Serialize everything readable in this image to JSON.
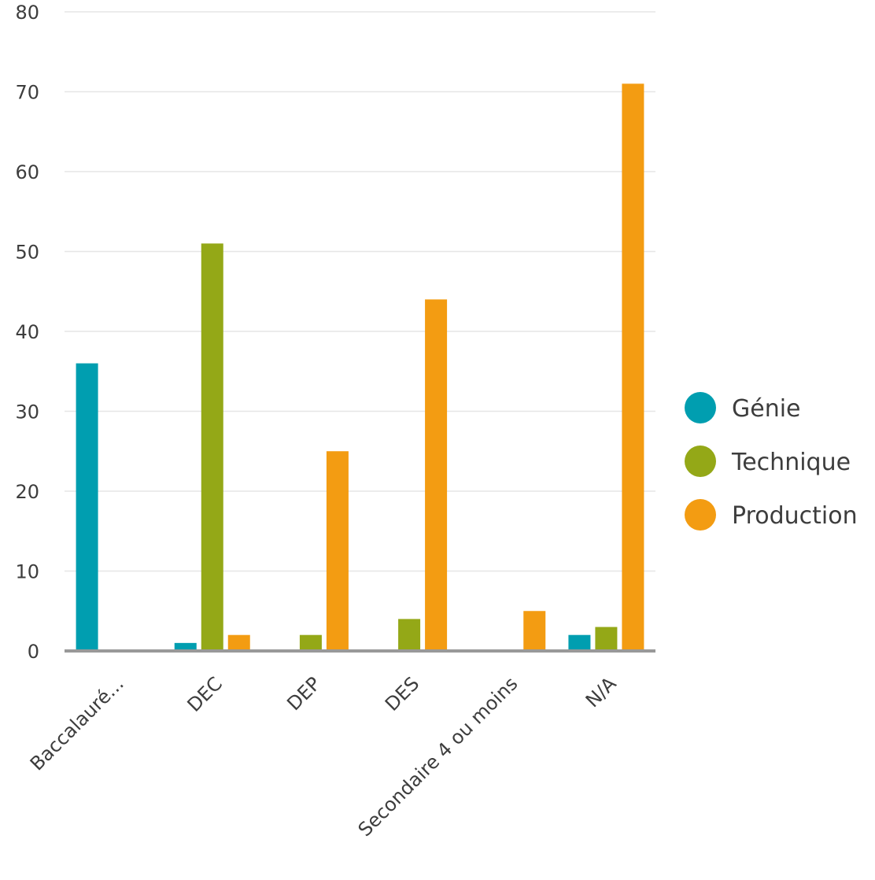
{
  "chart_data": {
    "type": "bar",
    "categories": [
      "Baccalauré...",
      "DEC",
      "DEP",
      "DES",
      "Secondaire 4 ou moins",
      "N/A"
    ],
    "series": [
      {
        "name": "Génie",
        "color": "#009eb0",
        "values": [
          36,
          1,
          0,
          0,
          0,
          2
        ]
      },
      {
        "name": "Technique",
        "color": "#94a817",
        "values": [
          0,
          51,
          2,
          4,
          0,
          3
        ]
      },
      {
        "name": "Production",
        "color": "#f39c12",
        "values": [
          0,
          2,
          25,
          44,
          5,
          71
        ]
      }
    ],
    "ylim": [
      0,
      80
    ],
    "yticks": [
      0,
      10,
      20,
      30,
      40,
      50,
      60,
      70,
      80
    ],
    "grid": true,
    "legend_position": "right",
    "gridline_color": "#e6e6e6",
    "baseline_color": "#999999"
  }
}
